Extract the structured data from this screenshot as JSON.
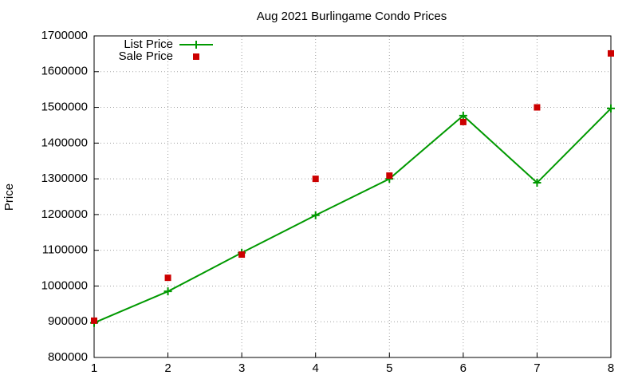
{
  "chart_data": {
    "type": "line",
    "title": "Aug 2021 Burlingame Condo Prices",
    "y_label": "Price",
    "x": [
      1,
      2,
      3,
      4,
      5,
      6,
      7,
      8
    ],
    "series": [
      {
        "name": "List Price",
        "color": "#009900",
        "style": "linespoints",
        "marker": "plus",
        "values": [
          897000,
          985000,
          1093000,
          1198000,
          1300000,
          1477000,
          1289000,
          1497000
        ]
      },
      {
        "name": "Sale Price",
        "color": "#cc0000",
        "style": "points",
        "marker": "square",
        "values": [
          903000,
          1023000,
          1088000,
          1300000,
          1309000,
          1459000,
          1500000,
          1651000
        ]
      }
    ],
    "xlim": [
      1,
      8
    ],
    "xticks": [
      1,
      2,
      3,
      4,
      5,
      6,
      7,
      8
    ],
    "ylim": [
      800000,
      1700000
    ],
    "yticks": [
      800000,
      900000,
      1000000,
      1100000,
      1200000,
      1300000,
      1400000,
      1500000,
      1600000,
      1700000
    ],
    "grid": true,
    "legend": "top-left"
  }
}
